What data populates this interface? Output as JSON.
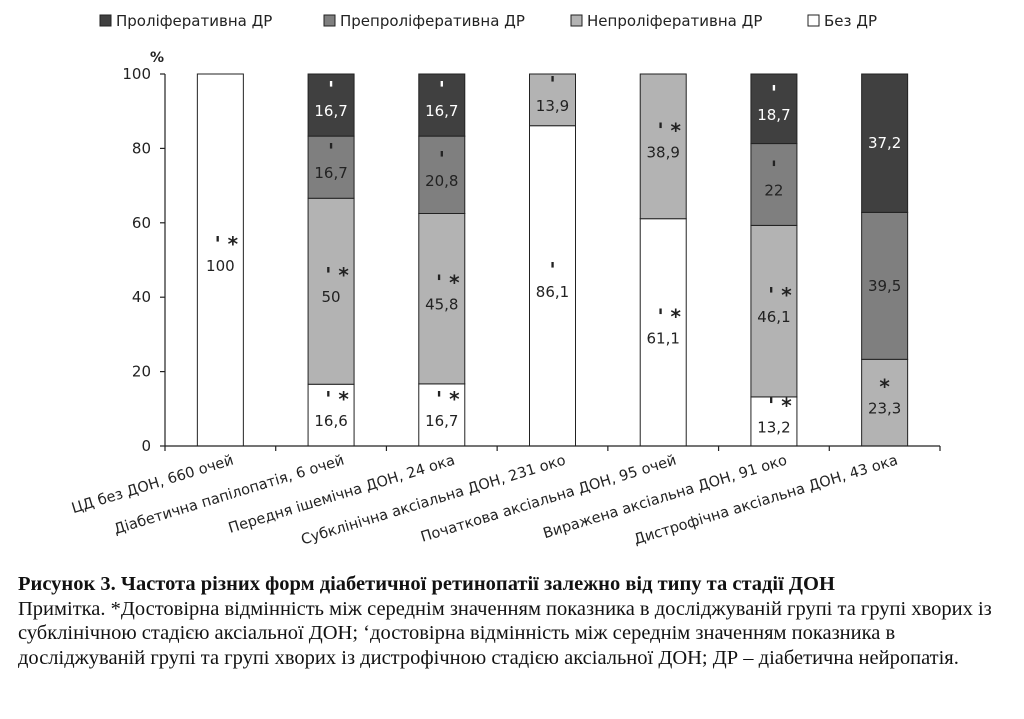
{
  "chart_data": {
    "type": "bar",
    "stacked": true,
    "ylabel": "%",
    "ylim": [
      0,
      100
    ],
    "yticks": [
      0,
      20,
      40,
      60,
      80,
      100
    ],
    "grid": false,
    "legend_position": "top",
    "categories": [
      "ЦД без ДОН, 660 очей",
      "Діабетична папілопатія, 6 очей",
      "Передня ішемічна ДОН, 24 ока",
      "Субклінічна аксіальна ДОН, 231 око",
      "Початкова аксіальна ДОН, 95 очей",
      "Виражена аксіальна ДОН, 91 око",
      "Дистрофічна аксіальна ДОН, 43 ока"
    ],
    "series": [
      {
        "name": "Без ДР",
        "color": "#ffffff",
        "label_color": "#222222",
        "values": [
          100,
          16.6,
          16.7,
          86.1,
          61.1,
          13.2,
          0
        ],
        "labels": [
          "100",
          "16,6",
          "16,7",
          "86,1",
          "61,1",
          "13,2",
          ""
        ],
        "marks": [
          "' *",
          "' *",
          "' *",
          "'",
          "' *",
          "' *",
          ""
        ]
      },
      {
        "name": "Непроліферативна ДР",
        "color": "#b3b3b3",
        "label_color": "#222222",
        "values": [
          0,
          50,
          45.8,
          13.9,
          38.9,
          46.1,
          23.3
        ],
        "labels": [
          "",
          "50",
          "45,8",
          "13,9",
          "38,9",
          "46,1",
          "23,3"
        ],
        "marks": [
          "",
          "' *",
          "' *",
          "'",
          "' *",
          "' *",
          "*"
        ]
      },
      {
        "name": "Препроліферативна ДР",
        "color": "#7f7f7f",
        "label_color": "#222222",
        "values": [
          0,
          16.7,
          20.8,
          0,
          0,
          22,
          39.5
        ],
        "labels": [
          "",
          "16,7",
          "20,8",
          "",
          "",
          "22",
          "39,5"
        ],
        "marks": [
          "",
          "'",
          "'",
          "",
          "",
          "'",
          ""
        ]
      },
      {
        "name": "Проліферативна ДР",
        "color": "#404040",
        "label_color": "#ffffff",
        "values": [
          0,
          16.7,
          16.7,
          0,
          0,
          18.7,
          37.2
        ],
        "labels": [
          "",
          "16,7",
          "16,7",
          "",
          "",
          "18,7",
          "37,2"
        ],
        "marks": [
          "",
          "'",
          "'",
          "",
          "",
          "'",
          ""
        ]
      }
    ],
    "legend_order": [
      "Проліферативна ДР",
      "Препроліферативна ДР",
      "Непроліферативна ДР",
      "Без ДР"
    ]
  },
  "caption": {
    "title": "Рисунок 3. Частота різних форм діабетичної ретинопатії залежно від типу та стадії ДОН",
    "note": "Примітка. *Достовірна відмінність між середнім значенням показника в досліджуваній групі та групі хворих із субклінічною стадією аксіальної ДОН; ‘достовірна відмінність між середнім значенням показника в досліджуваній групі та групі хворих із дистрофічною стадією аксіальної ДОН; ДР – діабетична нейропатія."
  }
}
